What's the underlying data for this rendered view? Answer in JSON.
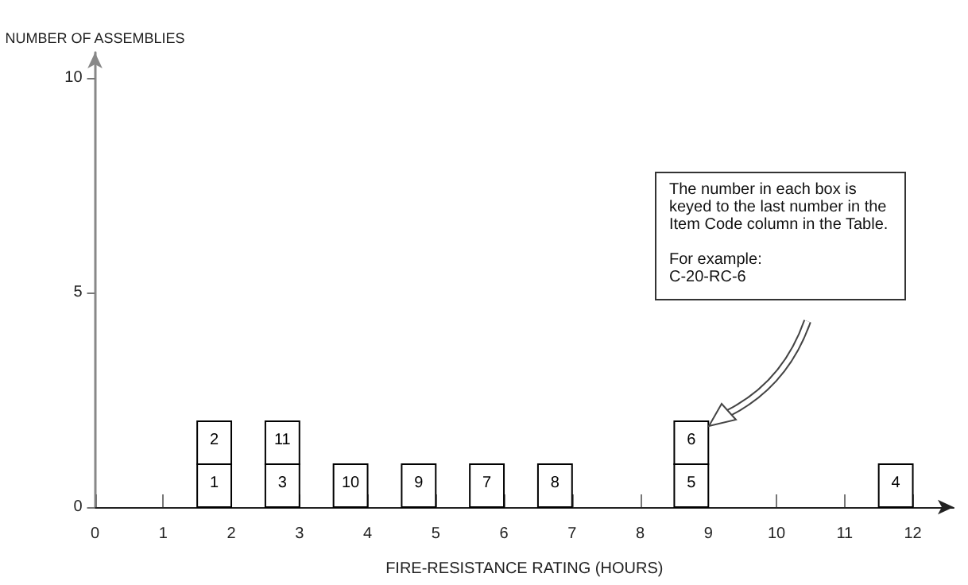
{
  "chart_data": {
    "type": "bar",
    "xlabel": "FIRE-RESISTANCE RATING (HOURS)",
    "ylabel": "NUMBER OF ASSEMBLIES",
    "series": [
      {
        "color": "#ffffff",
        "x": [
          1.75,
          2.75,
          3.75,
          4.75,
          5.75,
          6.75,
          8.75,
          11.75
        ],
        "values": [
          1,
          1,
          1,
          1,
          1,
          1,
          1,
          1
        ]
      },
      {
        "color": "#ffffff",
        "x": [
          1.75,
          2.75,
          8.75
        ],
        "values": [
          1,
          1,
          1
        ],
        "base": [
          1,
          1,
          1
        ]
      }
    ],
    "xlim": [
      0,
      12.6
    ],
    "ylim": [
      0,
      10.6
    ],
    "xticks": [
      0,
      1,
      2,
      3,
      4,
      5,
      6,
      7,
      8,
      9,
      10,
      11,
      12
    ],
    "yticks": [
      0,
      5,
      10
    ],
    "annotations": [
      "The number in each box is\nkeyed to the last number in the\nItem Code column in the Table.\n\nFor example:\nC-20-RC-6",
      {
        "text": "1",
        "x": 1.75,
        "y": 1
      },
      {
        "text": "3",
        "x": 2.75,
        "y": 1
      },
      {
        "text": "10",
        "x": 3.75,
        "y": 1
      },
      {
        "text": "9",
        "x": 4.75,
        "y": 1
      },
      {
        "text": "7",
        "x": 5.75,
        "y": 1
      },
      {
        "text": "8",
        "x": 6.75,
        "y": 1
      },
      {
        "text": "5",
        "x": 8.75,
        "y": 1
      },
      {
        "text": "4",
        "x": 11.75,
        "y": 1
      },
      {
        "text": "2",
        "x": 1.75,
        "y": 2
      },
      {
        "text": "11",
        "x": 2.75,
        "y": 2
      },
      {
        "text": "6",
        "x": 8.75,
        "y": 2
      }
    ]
  }
}
